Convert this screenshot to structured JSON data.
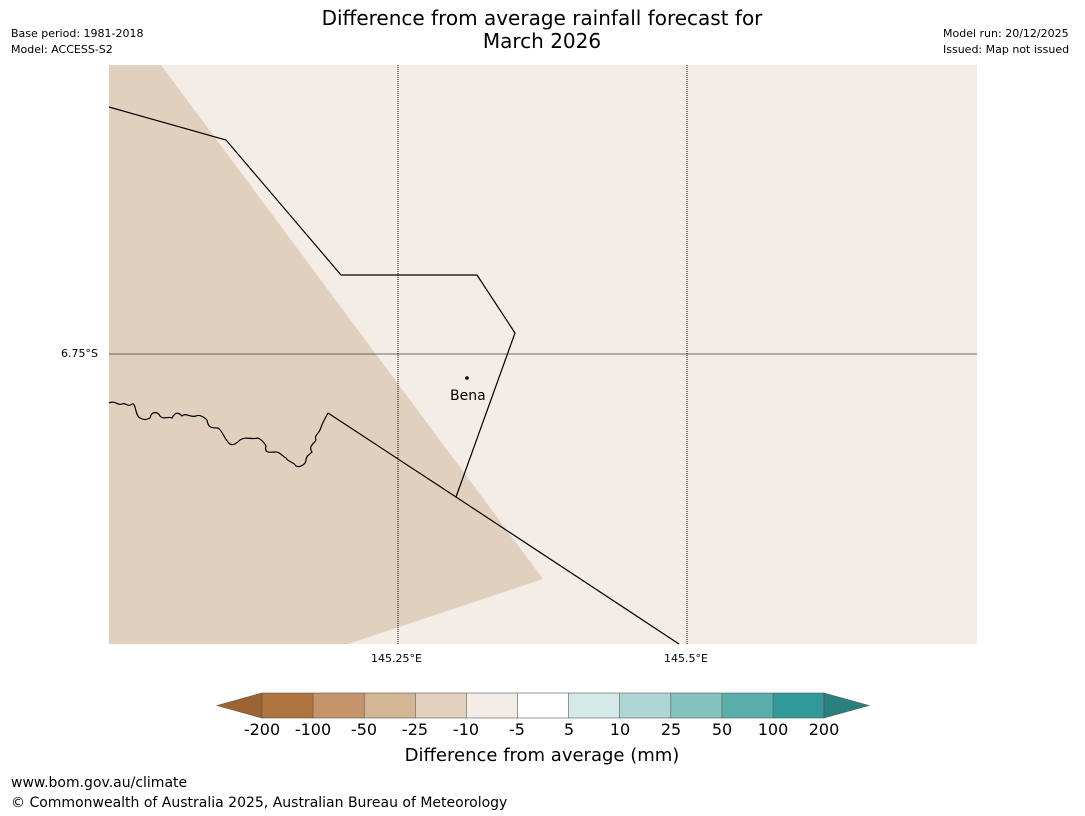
{
  "title_line1": "Difference from average rainfall forecast for",
  "title_line2": "March 2026",
  "meta_left": {
    "base_period": "Base period: 1981-2018",
    "model": "Model: ACCESS-S2"
  },
  "meta_right": {
    "model_run": "Model run: 20/12/2025",
    "issued": "Issued: Map not issued"
  },
  "map": {
    "grid_labels": {
      "lat": "6.75°S",
      "lon1": "145.25°E",
      "lon2": "145.5°E"
    },
    "town": "Bena",
    "colors": {
      "background_class": "#f4ece6",
      "drier_class": "#e2d0bf",
      "border": "#000000",
      "gridline": "#000000"
    }
  },
  "colorbar": {
    "ticks": [
      "-200",
      "-100",
      "-50",
      "-25",
      "-10",
      "-5",
      "5",
      "10",
      "25",
      "50",
      "100",
      "200"
    ],
    "colors": [
      "#9b6432",
      "#b0753f",
      "#c4956a",
      "#d3b593",
      "#e3d0bf",
      "#f4ece6",
      "#ffffff",
      "#d6e9e9",
      "#aed6d5",
      "#86c3bf",
      "#5aaeab",
      "#32999a",
      "#2a7f7f"
    ],
    "label": "Difference from average (mm)"
  },
  "footer": {
    "url": "www.bom.gov.au/climate",
    "copyright": "© Commonwealth of Australia 2025, Australian Bureau of Meteorology"
  }
}
